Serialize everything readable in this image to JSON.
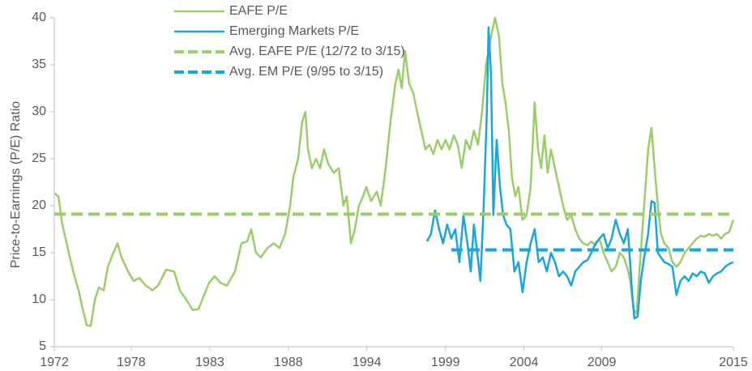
{
  "chart_data": {
    "type": "line",
    "y_label": "Price-to-Earnings (P/E) Ratio",
    "xlim": [
      1972,
      2015
    ],
    "ylim": [
      5,
      40
    ],
    "xticks": [
      1972,
      {
        "value": 1976.87,
        "label": "1978"
      },
      {
        "value": 1981.85,
        "label": "1983"
      },
      {
        "value": 1986.82,
        "label": "1988"
      },
      {
        "value": 1991.79,
        "label": "1994"
      },
      {
        "value": 1996.77,
        "label": "1999"
      },
      {
        "value": 2001.74,
        "label": "2004"
      },
      {
        "value": 2006.67,
        "label": "2009"
      },
      2015
    ],
    "yticks": [
      5,
      10,
      15,
      20,
      25,
      30,
      35,
      40
    ],
    "grid": false,
    "legend": "top-left",
    "series": [
      {
        "name": "EAFE P/E",
        "color": "#9bcd6b",
        "dash": false,
        "x": [
          1972.0,
          1972.26,
          1972.51,
          1972.92,
          1973.28,
          1973.54,
          1973.8,
          1974.05,
          1974.31,
          1974.57,
          1974.82,
          1975.13,
          1975.39,
          1975.74,
          1976.0,
          1976.26,
          1976.67,
          1977.03,
          1977.39,
          1977.8,
          1978.21,
          1978.57,
          1979.08,
          1979.59,
          1979.95,
          1980.36,
          1980.77,
          1981.13,
          1981.49,
          1981.8,
          1982.16,
          1982.52,
          1982.93,
          1983.44,
          1983.85,
          1984.21,
          1984.47,
          1984.77,
          1985.08,
          1985.49,
          1985.9,
          1986.26,
          1986.62,
          1986.93,
          1987.13,
          1987.44,
          1987.7,
          1987.9,
          1988.06,
          1988.31,
          1988.57,
          1988.83,
          1989.08,
          1989.34,
          1989.7,
          1990.01,
          1990.31,
          1990.52,
          1990.78,
          1991.03,
          1991.29,
          1991.55,
          1991.75,
          1992.06,
          1992.42,
          1992.67,
          1992.98,
          1993.29,
          1993.6,
          1993.8,
          1994.01,
          1994.21,
          1994.47,
          1994.73,
          1994.98,
          1995.24,
          1995.5,
          1995.75,
          1996.01,
          1996.26,
          1996.52,
          1996.78,
          1997.03,
          1997.29,
          1997.55,
          1997.8,
          1998.06,
          1998.32,
          1998.57,
          1998.83,
          1999.09,
          1999.34,
          1999.65,
          1999.91,
          2000.16,
          2000.37,
          2000.57,
          2000.78,
          2000.98,
          2001.19,
          2001.39,
          2001.65,
          2001.91,
          2002.16,
          2002.42,
          2002.63,
          2002.83,
          2003.04,
          2003.24,
          2003.45,
          2003.7,
          2003.96,
          2004.22,
          2004.47,
          2004.73,
          2004.99,
          2005.24,
          2005.5,
          2005.76,
          2006.01,
          2006.27,
          2006.52,
          2006.78,
          2007.04,
          2007.29,
          2007.55,
          2007.81,
          2008.06,
          2008.32,
          2008.47,
          2008.68,
          2008.88,
          2009.09,
          2009.35,
          2009.6,
          2009.81,
          2010.01,
          2010.22,
          2010.42,
          2010.63,
          2010.89,
          2011.14,
          2011.4,
          2011.65,
          2011.91,
          2012.17,
          2012.42,
          2012.68,
          2012.94,
          2013.19,
          2013.45,
          2013.71,
          2013.96,
          2014.22,
          2014.48,
          2014.73,
          2015.0
        ],
        "values": [
          21.3,
          21,
          18,
          15,
          12.5,
          11,
          9,
          7.3,
          7.2,
          10,
          11.3,
          11,
          13.5,
          15,
          16,
          14.5,
          13,
          12,
          12.3,
          11.5,
          11,
          11.5,
          13.2,
          13,
          11,
          10,
          8.9,
          9,
          10.5,
          11.8,
          12.5,
          11.8,
          11.5,
          13,
          16,
          16.2,
          17.5,
          15,
          14.5,
          15.5,
          16,
          15.5,
          17,
          20,
          23,
          25,
          29,
          30,
          26,
          24,
          25,
          24,
          26,
          24.5,
          23.5,
          24,
          20,
          21,
          16,
          17.5,
          20,
          21,
          22,
          20.5,
          21.5,
          20,
          24,
          29,
          33,
          34.5,
          32.5,
          36.5,
          33,
          32,
          30,
          28,
          26,
          26.5,
          25.5,
          27,
          26,
          27,
          26,
          27.5,
          26.5,
          24,
          27,
          26,
          28,
          26.5,
          30,
          35,
          38,
          40,
          38,
          33,
          31,
          28,
          23,
          21,
          22,
          18.5,
          19,
          22,
          31,
          26,
          24,
          27.5,
          23.5,
          26,
          24,
          22,
          20,
          18.5,
          19,
          17.5,
          16.5,
          16,
          15.8,
          16.2,
          15.8,
          16.5,
          15,
          14,
          13,
          13.5,
          15,
          14.5,
          13.2,
          12,
          9,
          8.5,
          14,
          20,
          26,
          28.3,
          24,
          20,
          17,
          16,
          15.5,
          14,
          13.5,
          14,
          15,
          15.5,
          16,
          16.5,
          16.8,
          16.7,
          17,
          16.8,
          17,
          16.5,
          17,
          17.2,
          18.5
        ]
      },
      {
        "name": "Emerging Markets P/E",
        "color": "#1ba5de",
        "dash": false,
        "x": [
          1995.6,
          1995.85,
          1996.11,
          1996.37,
          1996.62,
          1996.88,
          1997.14,
          1997.39,
          1997.65,
          1997.91,
          1998.16,
          1998.37,
          1998.57,
          1998.78,
          1998.98,
          1999.19,
          1999.39,
          1999.5,
          1999.65,
          1999.8,
          2000.01,
          2000.22,
          2000.42,
          2000.63,
          2000.88,
          2001.14,
          2001.39,
          2001.65,
          2001.91,
          2002.16,
          2002.42,
          2002.67,
          2002.93,
          2003.19,
          2003.45,
          2003.7,
          2003.96,
          2004.22,
          2004.47,
          2004.73,
          2004.99,
          2005.24,
          2005.5,
          2005.76,
          2006.01,
          2006.27,
          2006.52,
          2006.78,
          2007.04,
          2007.29,
          2007.55,
          2007.81,
          2008.06,
          2008.32,
          2008.58,
          2008.73,
          2008.94,
          2009.14,
          2009.35,
          2009.6,
          2009.81,
          2010.01,
          2010.22,
          2010.42,
          2010.63,
          2010.89,
          2011.14,
          2011.4,
          2011.65,
          2011.91,
          2012.17,
          2012.42,
          2012.68,
          2012.94,
          2013.19,
          2013.45,
          2013.71,
          2013.96,
          2014.22,
          2014.48,
          2014.73,
          2015.0
        ],
        "values": [
          16.2,
          17,
          19.5,
          17.5,
          16,
          18,
          16.5,
          17.5,
          14,
          19,
          16,
          13,
          18,
          15,
          12,
          20,
          30,
          39,
          34,
          19,
          27,
          22,
          19,
          18,
          17.5,
          13,
          14,
          10.8,
          14,
          16,
          17.5,
          14,
          14.5,
          13,
          15,
          14,
          12.5,
          13,
          12.5,
          11.5,
          13,
          13.5,
          14,
          14.2,
          15,
          16,
          16.5,
          17,
          15.5,
          16.5,
          18.5,
          17,
          16,
          17.5,
          11,
          8,
          8.2,
          12,
          14.5,
          17,
          20.5,
          20.3,
          15,
          14.5,
          14,
          13.8,
          13.5,
          10.5,
          12,
          12.5,
          12,
          12.8,
          12.5,
          13,
          12.8,
          11.8,
          12.5,
          12.8,
          13,
          13.5,
          13.8,
          14
        ]
      },
      {
        "name": "Avg. EAFE P/E (12/72 to 3/15)",
        "color": "#9bcd6b",
        "dash": true,
        "x": [
          1972,
          2015
        ],
        "values": [
          19.1,
          19.1
        ]
      },
      {
        "name": "Avg. EM P/E (9/95 to 3/15)",
        "color": "#1ba5de",
        "dash": true,
        "x": [
          1997.14,
          2015
        ],
        "values": [
          15.3,
          15.3
        ]
      }
    ]
  }
}
